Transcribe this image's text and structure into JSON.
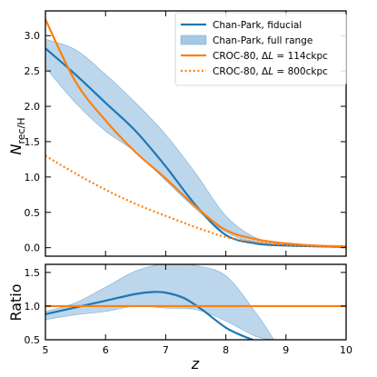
{
  "chart_data": [
    {
      "type": "line",
      "panel": "top",
      "ylabel_main": "N",
      "ylabel_sub": "rec/H",
      "xlim": [
        5,
        10
      ],
      "ylim": [
        -0.12,
        3.35
      ],
      "xticks": [
        5,
        6,
        7,
        8,
        9,
        10
      ],
      "yticks": [
        0.0,
        0.5,
        1.0,
        1.5,
        2.0,
        2.5,
        3.0
      ],
      "ytick_labels": [
        "0.0",
        "0.5",
        "1.0",
        "1.5",
        "2.0",
        "2.5",
        "3.0"
      ],
      "legend_position": "top-right",
      "legend": [
        {
          "label_main": "Chan-Park, fiducial",
          "label_italic": "",
          "label_tail": "",
          "style": "line",
          "color": "#1f77b4"
        },
        {
          "label_main": "Chan-Park, full range",
          "label_italic": "",
          "label_tail": "",
          "style": "band",
          "color": "#a6c8e4"
        },
        {
          "label_main": "CROC-80, Δ",
          "label_italic": "L",
          "label_tail": " = 114ckpc",
          "style": "line",
          "color": "#ff7f0e"
        },
        {
          "label_main": "CROC-80, Δ",
          "label_italic": "L",
          "label_tail": " = 800ckpc",
          "style": "dotted",
          "color": "#ff7f0e"
        }
      ],
      "band": {
        "x": [
          5.0,
          5.5,
          6.0,
          6.5,
          7.0,
          7.5,
          8.0,
          8.5,
          9.0,
          9.5,
          10.0
        ],
        "upper": [
          2.95,
          2.8,
          2.45,
          2.05,
          1.6,
          1.05,
          0.45,
          0.14,
          0.06,
          0.03,
          0.02
        ],
        "lower": [
          2.55,
          2.05,
          1.65,
          1.35,
          0.95,
          0.55,
          0.22,
          0.07,
          0.04,
          0.02,
          0.01
        ]
      },
      "series": [
        {
          "name": "Chan-Park, fiducial",
          "style": "solid",
          "color": "#1f77b4",
          "x": [
            5.0,
            5.5,
            6.0,
            6.5,
            7.0,
            7.5,
            8.0,
            8.5,
            9.0,
            9.5,
            10.0
          ],
          "y": [
            2.82,
            2.45,
            2.05,
            1.65,
            1.15,
            0.6,
            0.18,
            0.06,
            0.03,
            0.02,
            0.01
          ]
        },
        {
          "name": "CROC-80, ΔL = 114ckpc",
          "style": "solid",
          "color": "#ff7f0e",
          "x": [
            5.0,
            5.5,
            6.0,
            6.5,
            7.0,
            7.5,
            8.0,
            8.5,
            9.0,
            9.5,
            10.0
          ],
          "y": [
            3.23,
            2.35,
            1.8,
            1.35,
            0.98,
            0.58,
            0.25,
            0.12,
            0.06,
            0.03,
            0.02
          ]
        },
        {
          "name": "CROC-80, ΔL = 800ckpc",
          "style": "dotted",
          "color": "#ff7f0e",
          "x": [
            5.0,
            5.5,
            6.0,
            6.5,
            7.0,
            7.5,
            8.0,
            8.5,
            9.0,
            9.5,
            10.0
          ],
          "y": [
            1.3,
            1.05,
            0.82,
            0.62,
            0.45,
            0.29,
            0.15,
            0.08,
            0.04,
            0.02,
            0.01
          ]
        }
      ]
    },
    {
      "type": "line",
      "panel": "bottom",
      "xlabel": "z",
      "ylabel": "Ratio",
      "xlim": [
        5,
        10
      ],
      "ylim": [
        0.5,
        1.62
      ],
      "xticks": [
        5,
        6,
        7,
        8,
        9,
        10
      ],
      "xtick_labels": [
        "5",
        "6",
        "7",
        "8",
        "9",
        "10"
      ],
      "yticks": [
        0.5,
        1.0,
        1.5
      ],
      "ytick_labels": [
        "0.5",
        "1.0",
        "1.5"
      ],
      "band": {
        "x": [
          5.0,
          5.5,
          6.0,
          6.5,
          7.0,
          7.5,
          8.0,
          8.5,
          8.8
        ],
        "upper": [
          0.92,
          1.05,
          1.28,
          1.52,
          1.63,
          1.6,
          1.45,
          0.9,
          0.5
        ],
        "lower": [
          0.8,
          0.87,
          0.92,
          1.0,
          0.97,
          0.95,
          0.78,
          0.55,
          0.5
        ]
      },
      "series": [
        {
          "name": "Chan-Park, fiducial",
          "style": "solid",
          "color": "#1f77b4",
          "x": [
            5.0,
            5.5,
            6.0,
            6.5,
            6.8,
            7.0,
            7.3,
            7.6,
            8.0,
            8.3,
            8.45
          ],
          "y": [
            0.88,
            0.98,
            1.08,
            1.18,
            1.21,
            1.2,
            1.12,
            0.95,
            0.68,
            0.55,
            0.5
          ]
        },
        {
          "name": "CROC-80, ΔL = 114ckpc",
          "style": "solid",
          "color": "#ff7f0e",
          "x": [
            5.0,
            10.0
          ],
          "y": [
            1.0,
            1.0
          ]
        }
      ]
    }
  ]
}
